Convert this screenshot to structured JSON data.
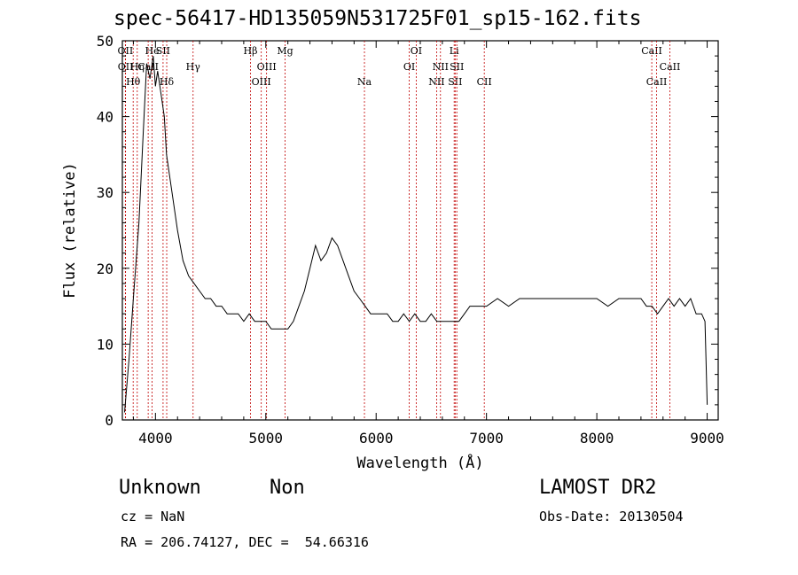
{
  "title": "spec-56417-HD135059N531725F01_sp15-162.fits",
  "footer": {
    "object_class": "Unknown",
    "subclass": "Non",
    "cz": "cz = NaN",
    "radec": "RA = 206.74127, DEC =  54.66316",
    "survey": "LAMOST DR2",
    "obs_date": "Obs-Date: 20130504"
  },
  "chart_data": {
    "type": "line",
    "title": "spec-56417-HD135059N531725F01_sp15-162.fits",
    "xlabel": "Wavelength (Å)",
    "ylabel": "Flux (relative)",
    "xlim": [
      3700,
      9100
    ],
    "ylim": [
      0,
      50
    ],
    "xticks": [
      4000,
      5000,
      6000,
      7000,
      8000,
      9000
    ],
    "yticks": [
      0,
      10,
      20,
      30,
      40,
      50
    ],
    "series": [
      {
        "x": [
          3720,
          3760,
          3800,
          3850,
          3890,
          3920,
          3950,
          3980,
          4000,
          4020,
          4050,
          4080,
          4100,
          4150,
          4200,
          4250,
          4300,
          4350,
          4400,
          4450,
          4500,
          4550,
          4600,
          4650,
          4700,
          4750,
          4800,
          4850,
          4900,
          4950,
          5000,
          5050,
          5100,
          5150,
          5200,
          5250,
          5300,
          5350,
          5400,
          5450,
          5500,
          5550,
          5600,
          5650,
          5700,
          5750,
          5800,
          5850,
          5900,
          5950,
          6000,
          6050,
          6100,
          6150,
          6200,
          6250,
          6300,
          6350,
          6400,
          6450,
          6500,
          6550,
          6600,
          6650,
          6700,
          6750,
          6800,
          6850,
          6900,
          6950,
          7000,
          7100,
          7200,
          7300,
          7400,
          7500,
          7600,
          7700,
          7800,
          7900,
          8000,
          8100,
          8200,
          8300,
          8400,
          8450,
          8500,
          8550,
          8600,
          8650,
          8700,
          8750,
          8800,
          8850,
          8900,
          8950,
          8980,
          9000
        ],
        "y": [
          1,
          8,
          16,
          26,
          38,
          47,
          45,
          48,
          44,
          46,
          43,
          40,
          35,
          30,
          25,
          21,
          19,
          18,
          17,
          16,
          16,
          15,
          15,
          14,
          14,
          14,
          13,
          14,
          13,
          13,
          13,
          12,
          12,
          12,
          12,
          13,
          15,
          17,
          20,
          23,
          21,
          22,
          24,
          23,
          21,
          19,
          17,
          16,
          15,
          14,
          14,
          14,
          14,
          13,
          13,
          14,
          13,
          14,
          13,
          13,
          14,
          13,
          13,
          13,
          13,
          13,
          14,
          15,
          15,
          15,
          15,
          16,
          15,
          16,
          16,
          16,
          16,
          16,
          16,
          16,
          16,
          15,
          16,
          16,
          16,
          15,
          15,
          14,
          15,
          16,
          15,
          16,
          15,
          16,
          14,
          14,
          13,
          2
        ]
      }
    ],
    "line_markers": [
      {
        "name": "OII",
        "wave": 3727,
        "row": 1
      },
      {
        "name": "OII",
        "wave": 3729,
        "row": 2
      },
      {
        "name": "Hθ",
        "wave": 3798,
        "row": 3
      },
      {
        "name": "Hη",
        "wave": 3835,
        "row": 2
      },
      {
        "name": "CaII",
        "wave": 3934,
        "row": 2
      },
      {
        "name": "He",
        "wave": 3970,
        "row": 1
      },
      {
        "name": "SII",
        "wave": 4069,
        "row": 1
      },
      {
        "name": "Hδ",
        "wave": 4102,
        "row": 3
      },
      {
        "name": "Hγ",
        "wave": 4341,
        "row": 2
      },
      {
        "name": "Hβ",
        "wave": 4861,
        "row": 1
      },
      {
        "name": "OIII",
        "wave": 4959,
        "row": 3
      },
      {
        "name": "OIII",
        "wave": 5007,
        "row": 2
      },
      {
        "name": "Mg",
        "wave": 5175,
        "row": 1
      },
      {
        "name": "Na",
        "wave": 5894,
        "row": 3
      },
      {
        "name": "OI",
        "wave": 6300,
        "row": 2
      },
      {
        "name": "OI",
        "wave": 6363,
        "row": 1
      },
      {
        "name": "NII",
        "wave": 6548,
        "row": 3
      },
      {
        "name": "NII",
        "wave": 6583,
        "row": 2
      },
      {
        "name": "Li",
        "wave": 6707,
        "row": 1
      },
      {
        "name": "SII",
        "wave": 6716,
        "row": 3
      },
      {
        "name": "SII",
        "wave": 6731,
        "row": 2
      },
      {
        "name": "CII",
        "wave": 6980,
        "row": 3
      },
      {
        "name": "CaII",
        "wave": 8498,
        "row": 1
      },
      {
        "name": "CaII",
        "wave": 8542,
        "row": 3
      },
      {
        "name": "CaII",
        "wave": 8662,
        "row": 2
      }
    ],
    "colors": {
      "spectrum": "#000000",
      "markers": "#c00000",
      "axes": "#000000"
    },
    "grid": false
  }
}
